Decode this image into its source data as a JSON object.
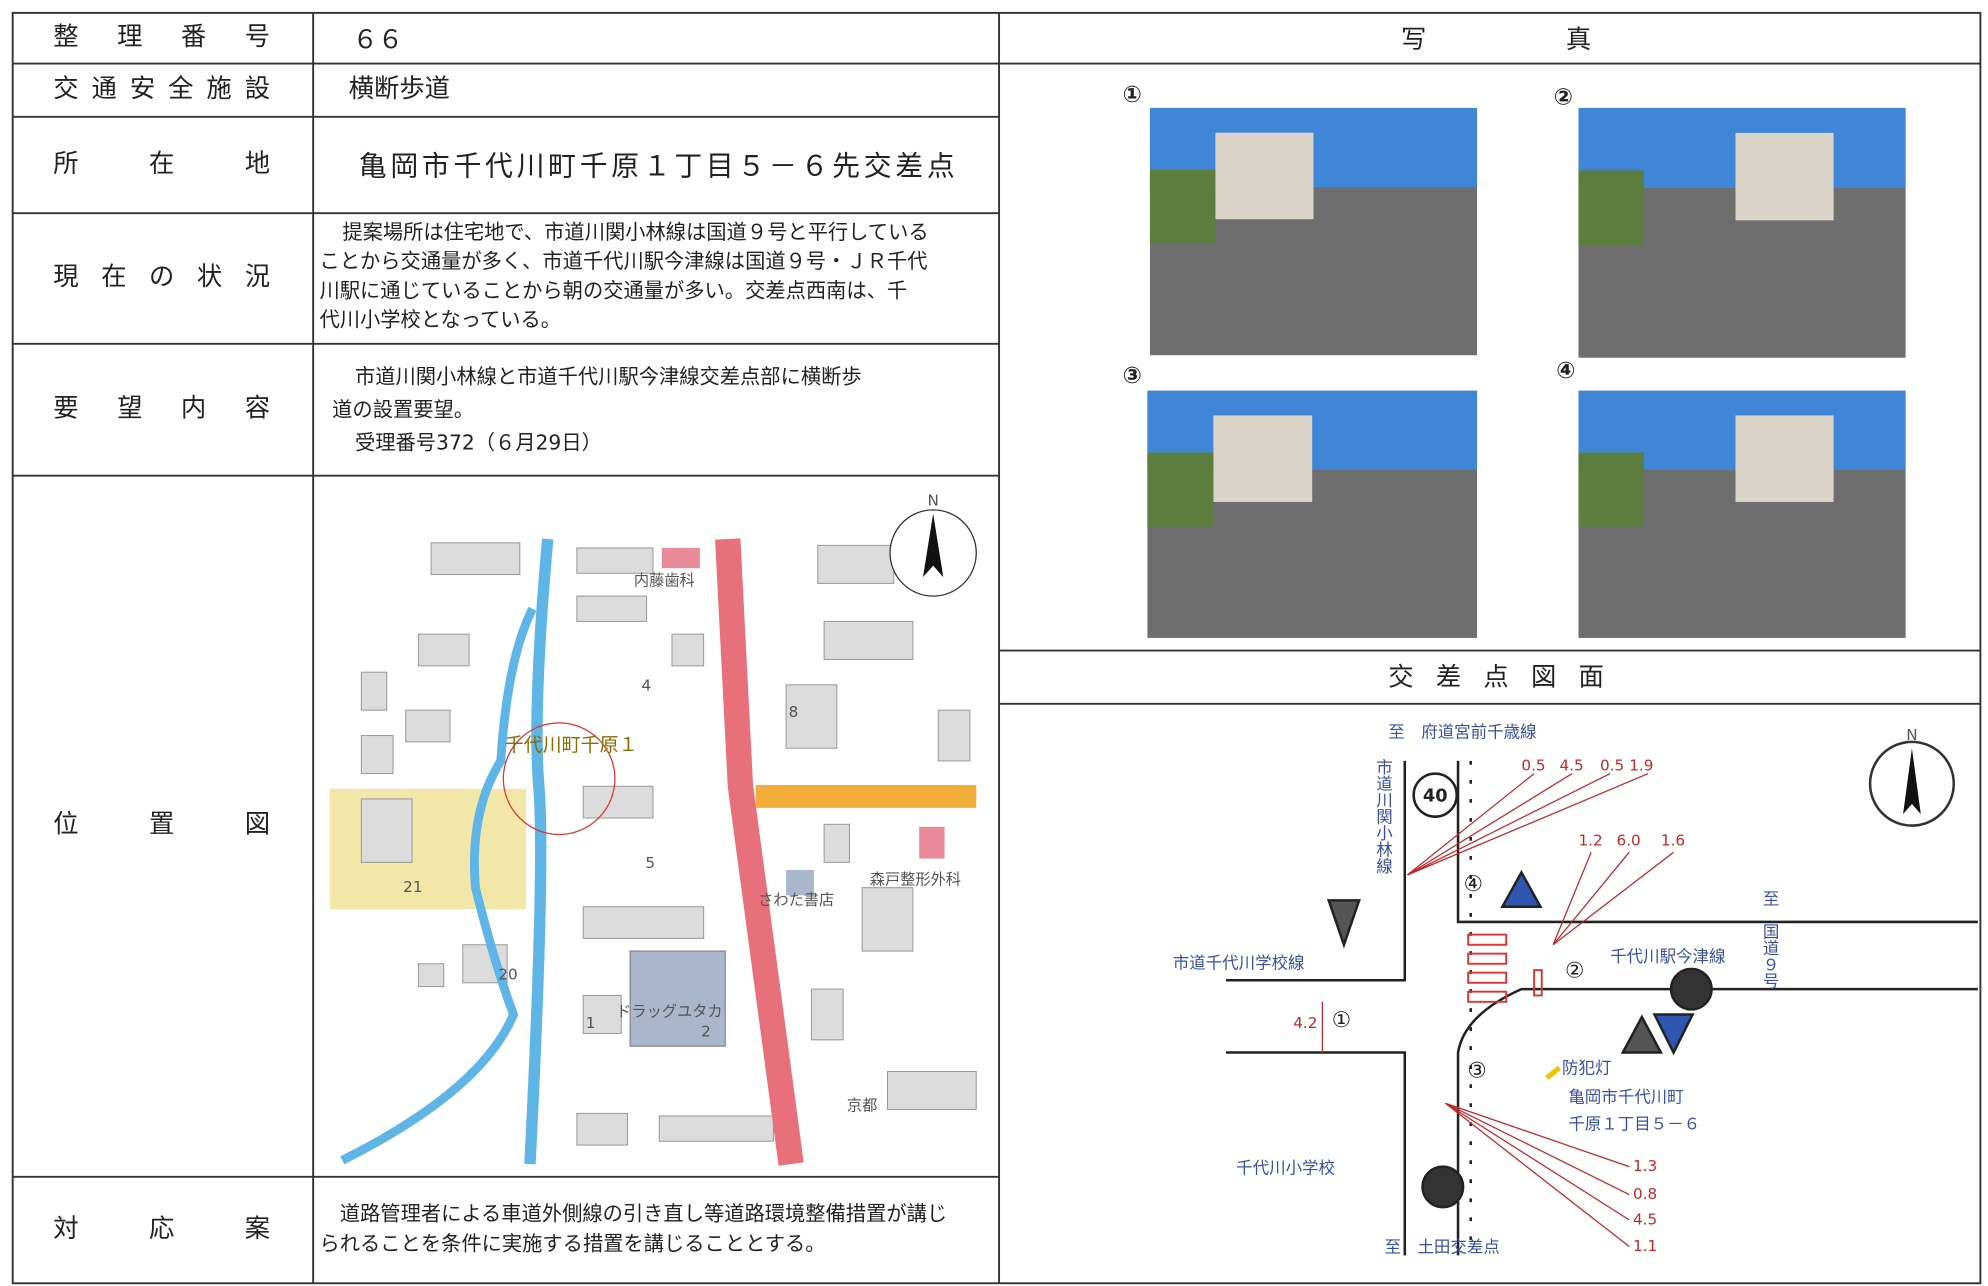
{
  "table": {
    "rows": [
      {
        "label": "整理番号",
        "lines": [
          "６６"
        ]
      },
      {
        "label": "交通安全施設",
        "lines": [
          "横断歩道"
        ]
      },
      {
        "label": "所在地",
        "lines": [
          "亀岡市千代川町千原１丁目５－６先交差点"
        ]
      },
      {
        "label": "現在の状況",
        "lines": [
          "提案場所は住宅地で、市道川関小林線は国道９号と平行している",
          "ことから交通量が多く、市道千代川駅今津線は国道９号・ＪＲ千代",
          "川駅に通じていることから朝の交通量が多い。交差点西南は、千",
          "代川小学校となっている。"
        ]
      },
      {
        "label": "要望内容",
        "lines": [
          "市道川関小林線と市道千代川駅今津線交差点部に横断歩",
          "道の設置要望。",
          "受理番号372（６月29日）"
        ]
      },
      {
        "label": "位置図",
        "lines": []
      },
      {
        "label": "対応案",
        "lines": [
          "道路管理者による車道外側線の引き直し等道路環境整備措置が講じ",
          "られることを条件に実施する措置を講じることとする。"
        ]
      }
    ]
  },
  "photos": {
    "header": "写真",
    "items": [
      "①",
      "②",
      "③",
      "④"
    ]
  },
  "location_map": {
    "compass": "N",
    "labels": [
      "内藤歯科",
      "千代川町千原１",
      "森戸整形外科",
      "さわた書店",
      "ドラッグユタカ",
      "京都",
      "4",
      "5",
      "21",
      "20",
      "1",
      "2",
      "8"
    ]
  },
  "intersection": {
    "header": "交差点図面",
    "compass": "N",
    "speed": "40",
    "labels": [
      "至　府道宮前千歳線",
      "市道川関小林線",
      "至　国道９号",
      "千代川駅今津線",
      "市道千代川学校線",
      "防犯灯",
      "亀岡市千代川町",
      "千原１丁目５－６",
      "千代川小学校",
      "至　土田交差点"
    ],
    "widths": [
      "0.5",
      "4.5",
      "0.5",
      "1.9",
      "1.2",
      "6.0",
      "1.6",
      "4.2",
      "1.3",
      "0.8",
      "4.5",
      "1.1"
    ],
    "points": [
      "①",
      "②",
      "③",
      "④"
    ]
  }
}
